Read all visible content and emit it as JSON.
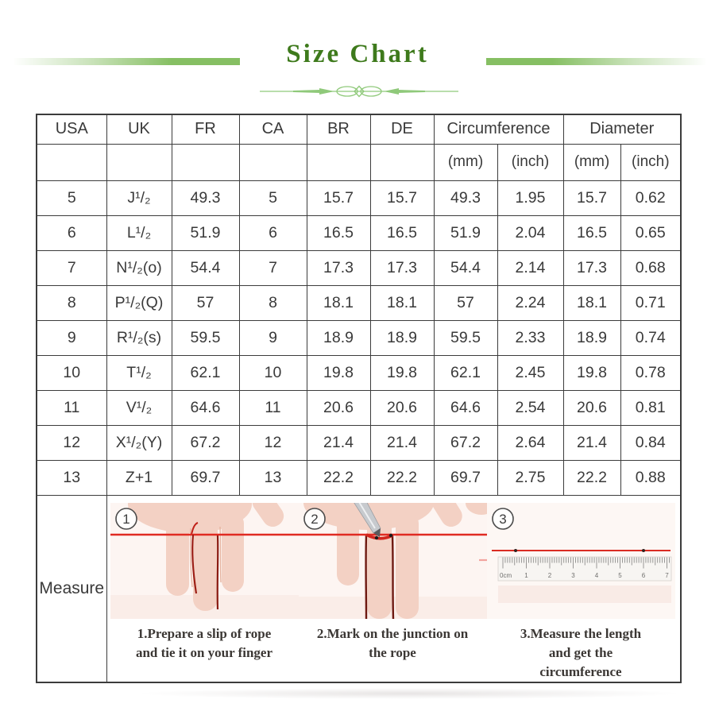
{
  "title": "Size Chart",
  "table": {
    "col_headers": [
      "USA",
      "UK",
      "FR",
      "CA",
      "BR",
      "DE"
    ],
    "group_headers": [
      "Circumference",
      "Diameter"
    ],
    "sub_headers": [
      "(mm)",
      "(inch)",
      "(mm)",
      "(inch)"
    ],
    "rows": [
      [
        "5",
        "J¹/₂",
        "49.3",
        "5",
        "15.7",
        "15.7",
        "49.3",
        "1.95",
        "15.7",
        "0.62"
      ],
      [
        "6",
        "L¹/₂",
        "51.9",
        "6",
        "16.5",
        "16.5",
        "51.9",
        "2.04",
        "16.5",
        "0.65"
      ],
      [
        "7",
        "N¹/₂(o)",
        "54.4",
        "7",
        "17.3",
        "17.3",
        "54.4",
        "2.14",
        "17.3",
        "0.68"
      ],
      [
        "8",
        "P¹/₂(Q)",
        "57",
        "8",
        "18.1",
        "18.1",
        "57",
        "2.24",
        "18.1",
        "0.71"
      ],
      [
        "9",
        "R¹/₂(s)",
        "59.5",
        "9",
        "18.9",
        "18.9",
        "59.5",
        "2.33",
        "18.9",
        "0.74"
      ],
      [
        "10",
        "T¹/₂",
        "62.1",
        "10",
        "19.8",
        "19.8",
        "62.1",
        "2.45",
        "19.8",
        "0.78"
      ],
      [
        "11",
        "V¹/₂",
        "64.6",
        "11",
        "20.6",
        "20.6",
        "64.6",
        "2.54",
        "20.6",
        "0.81"
      ],
      [
        "12",
        "X¹/₂(Y)",
        "67.2",
        "12",
        "21.4",
        "21.4",
        "67.2",
        "2.64",
        "21.4",
        "0.84"
      ],
      [
        "13",
        "Z+1",
        "69.7",
        "13",
        "22.2",
        "22.2",
        "69.7",
        "2.75",
        "22.2",
        "0.88"
      ]
    ]
  },
  "measure": {
    "label": "Measure",
    "steps": [
      {
        "badge": "1",
        "caption": "1.Prepare a slip of rope and tie it on your finger"
      },
      {
        "badge": "2",
        "caption": "2.Mark on the junction on the rope"
      },
      {
        "badge": "3",
        "caption": "3.Measure the length and get the circumference"
      }
    ],
    "ruler_labels": [
      "0cm",
      "1",
      "2",
      "3",
      "4",
      "5",
      "6",
      "7"
    ]
  },
  "colors": {
    "title_green": "#3e7a1c",
    "bar_green": "#86bf63",
    "ornament_green": "#8fc97a",
    "rope_red": "#e02b22",
    "grid_border": "#3c3c3c",
    "hand_pink": "#f3d1c4"
  }
}
